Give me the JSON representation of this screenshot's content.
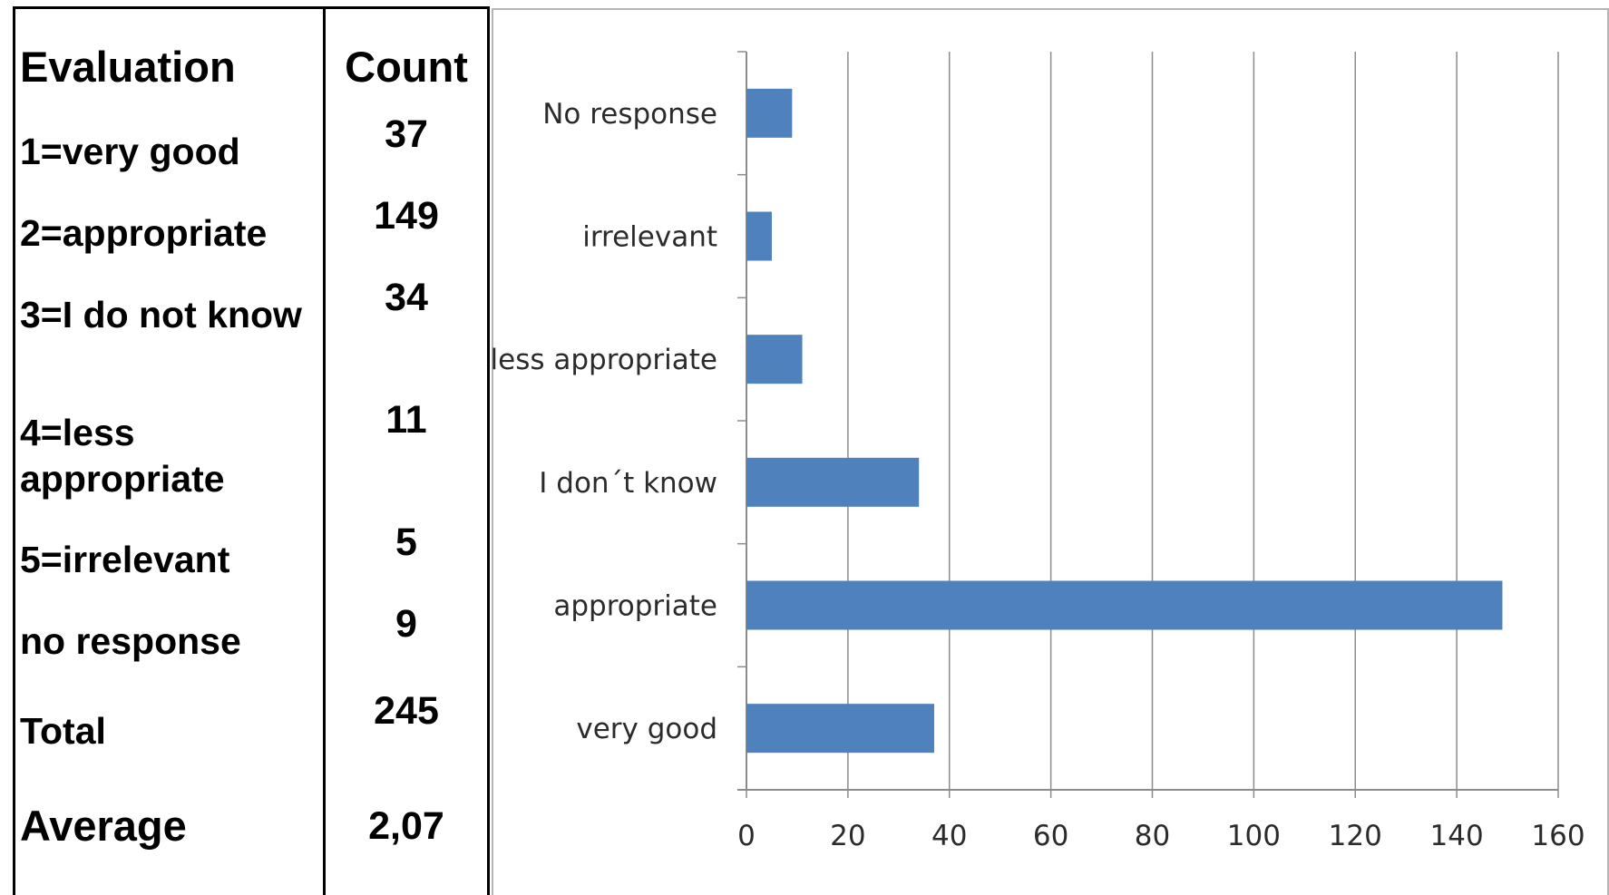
{
  "table": {
    "header": {
      "evaluation": "Evaluation",
      "count": "Count"
    },
    "rows": [
      {
        "label": "1=very good",
        "count": "37"
      },
      {
        "label": "2=appropriate",
        "count": "149"
      },
      {
        "label": "3=I do not know",
        "count": "34"
      },
      {
        "label_line1": "4=less",
        "label_line2": "appropriate",
        "count": "11"
      },
      {
        "label": "5=irrelevant",
        "count": "5"
      },
      {
        "label": "no response",
        "count": "9"
      },
      {
        "label": "Total",
        "count": "245"
      },
      {
        "label": "Average",
        "count": "2,07"
      }
    ]
  },
  "chart_data": {
    "type": "bar",
    "orientation": "horizontal",
    "categories": [
      "No response",
      "irrelevant",
      "less appropriate",
      "I don´t know",
      "appropriate",
      "very good"
    ],
    "values": [
      9,
      5,
      11,
      34,
      149,
      37
    ],
    "xlim": [
      0,
      160
    ],
    "x_ticks": [
      "0",
      "20",
      "40",
      "60",
      "80",
      "100",
      "120",
      "140",
      "160"
    ],
    "title": "",
    "xlabel": "",
    "ylabel": "",
    "grid": "vertical",
    "bar_color": "#4f81bd",
    "grid_color": "#8c8c8c"
  }
}
